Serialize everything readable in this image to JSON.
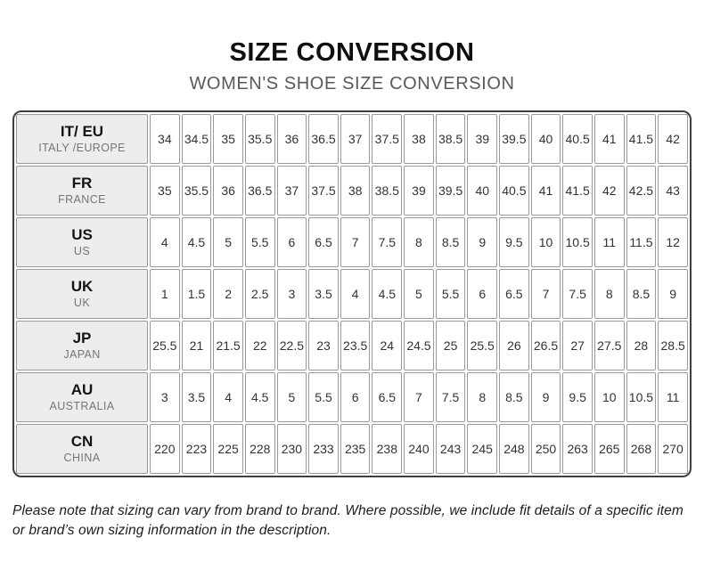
{
  "header": {
    "title": "SIZE CONVERSION",
    "subtitle": "WOMEN'S SHOE SIZE CONVERSION"
  },
  "table": {
    "rows": [
      {
        "code": "IT/ EU",
        "region": "ITALY /EUROPE",
        "values": [
          "34",
          "34.5",
          "35",
          "35.5",
          "36",
          "36.5",
          "37",
          "37.5",
          "38",
          "38.5",
          "39",
          "39.5",
          "40",
          "40.5",
          "41",
          "41.5",
          "42"
        ]
      },
      {
        "code": "FR",
        "region": "FRANCE",
        "values": [
          "35",
          "35.5",
          "36",
          "36.5",
          "37",
          "37.5",
          "38",
          "38.5",
          "39",
          "39.5",
          "40",
          "40.5",
          "41",
          "41.5",
          "42",
          "42.5",
          "43"
        ]
      },
      {
        "code": "US",
        "region": "US",
        "values": [
          "4",
          "4.5",
          "5",
          "5.5",
          "6",
          "6.5",
          "7",
          "7.5",
          "8",
          "8.5",
          "9",
          "9.5",
          "10",
          "10.5",
          "11",
          "11.5",
          "12"
        ]
      },
      {
        "code": "UK",
        "region": "UK",
        "values": [
          "1",
          "1.5",
          "2",
          "2.5",
          "3",
          "3.5",
          "4",
          "4.5",
          "5",
          "5.5",
          "6",
          "6.5",
          "7",
          "7.5",
          "8",
          "8.5",
          "9"
        ]
      },
      {
        "code": "JP",
        "region": "JAPAN",
        "values": [
          "25.5",
          "21",
          "21.5",
          "22",
          "22.5",
          "23",
          "23.5",
          "24",
          "24.5",
          "25",
          "25.5",
          "26",
          "26.5",
          "27",
          "27.5",
          "28",
          "28.5"
        ]
      },
      {
        "code": "AU",
        "region": "AUSTRALIA",
        "values": [
          "3",
          "3.5",
          "4",
          "4.5",
          "5",
          "5.5",
          "6",
          "6.5",
          "7",
          "7.5",
          "8",
          "8.5",
          "9",
          "9.5",
          "10",
          "10.5",
          "11"
        ]
      },
      {
        "code": "CN",
        "region": "CHINA",
        "values": [
          "220",
          "223",
          "225",
          "228",
          "230",
          "233",
          "235",
          "238",
          "240",
          "243",
          "245",
          "248",
          "250",
          "263",
          "265",
          "268",
          "270"
        ]
      }
    ]
  },
  "footer": {
    "note": "Please note that sizing can vary from brand to brand. Where possible, we include fit details of a specific item or brand’s own sizing information in the description."
  },
  "colors": {
    "title_text": "#0f0f0f",
    "subtitle_text": "#595959",
    "outer_border": "#3f3f3f",
    "cell_border": "#9a9a9a",
    "header_cell_bg": "#ededed",
    "value_text": "#333333"
  }
}
